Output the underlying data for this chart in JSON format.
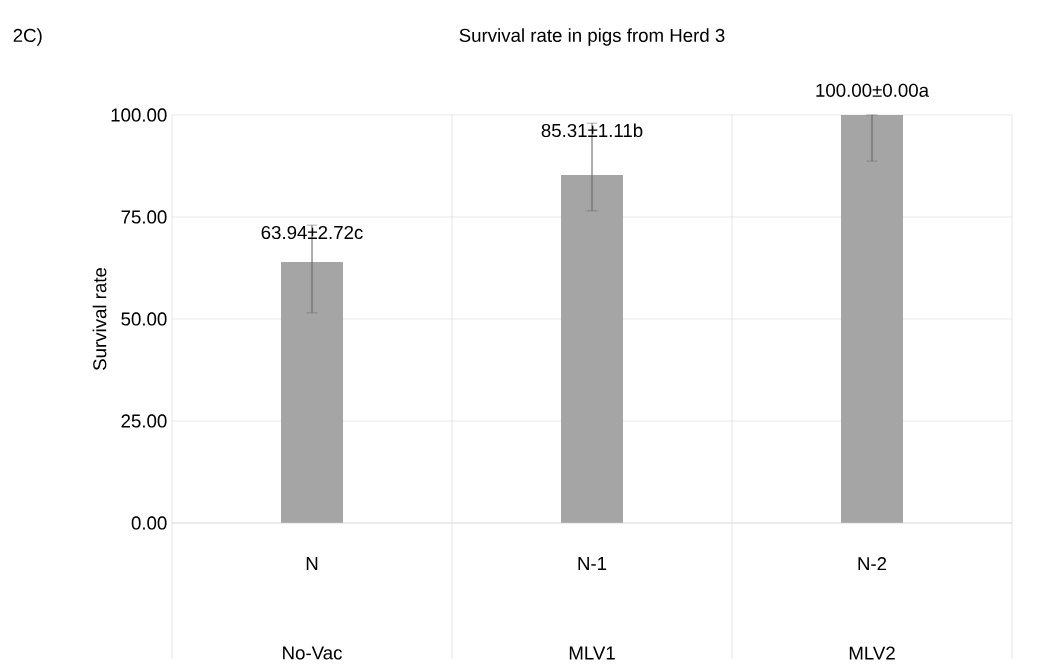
{
  "chart_data": {
    "type": "bar",
    "title": "Survival rate in pigs from Herd 3",
    "ylabel": "Survival rate",
    "categories": [
      "N",
      "N-1",
      "N-2"
    ],
    "values": [
      63.94,
      85.31,
      100
    ],
    "errors": [
      [
        51.5,
        73
      ],
      [
        76.5,
        98
      ],
      [
        88.7,
        100
      ]
    ],
    "value_labels": [
      "63.94±2.72c",
      "85.31±1.11b",
      "100.00±0.00a"
    ],
    "color": "#a5a5a5",
    "ylim": [
      0,
      100
    ],
    "yticks": [
      {
        "value": 0,
        "label": "0.00"
      },
      {
        "value": 25,
        "label": "25.00"
      },
      {
        "value": 50,
        "label": "50.00"
      },
      {
        "value": 75,
        "label": "75.00"
      },
      {
        "value": 100,
        "label": "100.00"
      }
    ],
    "grid": true,
    "annotations": [
      "2C)",
      "No-Vac",
      "MLV1",
      "MLV2"
    ]
  }
}
